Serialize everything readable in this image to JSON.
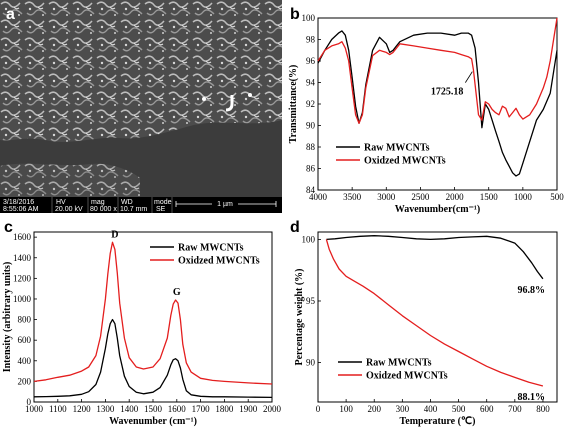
{
  "colors": {
    "raw": "#000000",
    "oxidized": "#e41e1e",
    "sem_bg": "#3a3a3a"
  },
  "sem": {
    "panel_letter": "a",
    "info_headers": [
      "HV",
      "mag",
      "WD",
      "mode"
    ],
    "date": "3/18/2016",
    "time": "8:55:06 AM",
    "hv": "20.00 kV",
    "mag": "80 000 x",
    "wd": "10.7 mm",
    "mode": "SE",
    "scale_bar": "1 µm"
  },
  "chart_data": [
    {
      "panel": "b",
      "type": "line",
      "xlabel": "Wavenumber(cm⁻¹)",
      "ylabel": "Transmittance(%)",
      "xlim": [
        4000,
        500
      ],
      "ylim": [
        84,
        100
      ],
      "xticks": [
        4000,
        3500,
        3000,
        2500,
        2000,
        1500,
        1000,
        500
      ],
      "yticks": [
        84,
        86,
        88,
        90,
        92,
        94,
        96,
        98,
        100
      ],
      "annotation": {
        "text": "1725.18",
        "x": 1725,
        "y": 95.2
      },
      "legend": {
        "placement": "lower-left",
        "entries": [
          "Raw MWCNTs",
          "Oxidzed MWCNTs"
        ]
      },
      "series": [
        {
          "name": "Raw MWCNTs",
          "x": [
            4000,
            3900,
            3800,
            3700,
            3650,
            3600,
            3550,
            3500,
            3450,
            3400,
            3350,
            3300,
            3200,
            3100,
            3000,
            2950,
            2900,
            2850,
            2800,
            2600,
            2400,
            2200,
            2000,
            1900,
            1800,
            1750,
            1700,
            1650,
            1600,
            1550,
            1500,
            1450,
            1400,
            1350,
            1300,
            1250,
            1200,
            1150,
            1100,
            1050,
            1000,
            900,
            800,
            700,
            600,
            550,
            500
          ],
          "y": [
            95.8,
            97.0,
            98.0,
            98.6,
            98.8,
            98.4,
            97.0,
            94.5,
            91.8,
            90.2,
            91.2,
            93.8,
            97.0,
            98.2,
            97.6,
            96.8,
            97.0,
            97.4,
            97.8,
            98.4,
            98.6,
            98.6,
            98.4,
            98.6,
            98.6,
            98.4,
            97.2,
            94.0,
            89.8,
            92.0,
            91.5,
            90.5,
            89.5,
            88.5,
            87.5,
            86.8,
            86.2,
            85.6,
            85.3,
            85.5,
            86.5,
            88.5,
            90.5,
            91.5,
            93.0,
            95.0,
            97.0
          ]
        },
        {
          "name": "Oxidzed MWCNTs",
          "x": [
            4000,
            3900,
            3800,
            3700,
            3650,
            3600,
            3550,
            3500,
            3450,
            3400,
            3350,
            3300,
            3200,
            3100,
            3000,
            2950,
            2900,
            2850,
            2800,
            2600,
            2400,
            2200,
            2000,
            1900,
            1800,
            1750,
            1725,
            1700,
            1650,
            1600,
            1550,
            1500,
            1450,
            1400,
            1350,
            1300,
            1250,
            1200,
            1150,
            1100,
            1050,
            1000,
            900,
            800,
            700,
            650,
            600,
            550,
            500
          ],
          "y": [
            96.0,
            97.0,
            97.4,
            97.6,
            97.8,
            97.2,
            96.0,
            93.5,
            91.0,
            90.2,
            91.0,
            93.5,
            96.5,
            97.0,
            96.8,
            96.6,
            96.8,
            97.2,
            97.6,
            97.4,
            97.2,
            97.0,
            96.8,
            96.6,
            96.4,
            96.2,
            95.2,
            93.8,
            91.0,
            90.5,
            92.2,
            92.0,
            91.5,
            91.2,
            91.0,
            91.8,
            91.6,
            90.8,
            91.2,
            91.6,
            91.0,
            90.6,
            91.0,
            92.0,
            93.5,
            94.5,
            96.0,
            98.0,
            100.0
          ]
        }
      ]
    },
    {
      "panel": "c",
      "type": "line",
      "xlabel": "Wavenumber (cm⁻¹)",
      "ylabel": "Intensity (arbitrary units)",
      "xlim": [
        1000,
        2000
      ],
      "ylim": [
        0,
        1650
      ],
      "xticks": [
        1000,
        1100,
        1200,
        1300,
        1400,
        1500,
        1600,
        1700,
        1800,
        1900,
        2000
      ],
      "yticks": [
        0,
        200,
        400,
        600,
        800,
        1000,
        1200,
        1400,
        1600
      ],
      "peak_labels": [
        {
          "text": "D",
          "x": 1340,
          "y": 1560
        },
        {
          "text": "G",
          "x": 1600,
          "y": 1000
        }
      ],
      "legend": {
        "placement": "top-right",
        "entries": [
          "Raw MWCNTs",
          "Oxidzed MWCNTs"
        ]
      },
      "series": [
        {
          "name": "Raw MWCNTs",
          "x": [
            1000,
            1050,
            1100,
            1150,
            1200,
            1230,
            1260,
            1280,
            1300,
            1310,
            1320,
            1330,
            1340,
            1350,
            1360,
            1380,
            1400,
            1430,
            1460,
            1500,
            1530,
            1560,
            1575,
            1585,
            1595,
            1605,
            1615,
            1625,
            1640,
            1660,
            1700,
            1750,
            1800,
            1900,
            2000
          ],
          "y": [
            50,
            52,
            55,
            60,
            75,
            100,
            170,
            290,
            520,
            660,
            760,
            800,
            760,
            620,
            450,
            250,
            150,
            95,
            80,
            95,
            140,
            260,
            360,
            410,
            420,
            400,
            330,
            220,
            110,
            70,
            55,
            50,
            50,
            48,
            45
          ]
        },
        {
          "name": "Oxidzed MWCNTs",
          "x": [
            1000,
            1050,
            1100,
            1150,
            1200,
            1230,
            1260,
            1280,
            1300,
            1310,
            1320,
            1330,
            1340,
            1350,
            1360,
            1380,
            1400,
            1430,
            1460,
            1500,
            1530,
            1560,
            1575,
            1585,
            1595,
            1605,
            1615,
            1625,
            1640,
            1660,
            1700,
            1750,
            1800,
            1900,
            2000
          ],
          "y": [
            200,
            215,
            240,
            260,
            300,
            340,
            450,
            640,
            1000,
            1240,
            1440,
            1550,
            1480,
            1250,
            960,
            620,
            430,
            340,
            320,
            340,
            420,
            620,
            840,
            950,
            990,
            960,
            800,
            560,
            380,
            290,
            230,
            210,
            200,
            185,
            175
          ]
        }
      ]
    },
    {
      "panel": "d",
      "type": "line",
      "xlabel": "Temperature (℃)",
      "ylabel": "Percentage weight (%)",
      "xlim": [
        0,
        850
      ],
      "ylim": [
        86.8,
        100.6
      ],
      "xticks": [
        0,
        100,
        200,
        300,
        400,
        500,
        600,
        700,
        800
      ],
      "yticks": [
        90,
        95,
        100
      ],
      "end_labels": [
        {
          "text": "96.8%",
          "x": 800,
          "y": 96.8
        },
        {
          "text": "88.1%",
          "x": 800,
          "y": 88.1
        }
      ],
      "legend": {
        "placement": "lower-left",
        "entries": [
          "Raw MWCNTs",
          "Oxidzed MWCNTs"
        ]
      },
      "series": [
        {
          "name": "Raw MWCNTs",
          "x": [
            30,
            60,
            100,
            150,
            200,
            250,
            300,
            350,
            400,
            450,
            500,
            550,
            600,
            650,
            700,
            730,
            760,
            780,
            800
          ],
          "y": [
            100.0,
            100.05,
            100.15,
            100.25,
            100.3,
            100.25,
            100.15,
            100.05,
            100.0,
            100.05,
            100.15,
            100.2,
            100.25,
            100.1,
            99.7,
            99.0,
            98.1,
            97.4,
            96.8
          ]
        },
        {
          "name": "Oxidzed MWCNTs",
          "x": [
            30,
            40,
            55,
            75,
            100,
            130,
            160,
            200,
            250,
            300,
            350,
            400,
            450,
            500,
            550,
            600,
            650,
            700,
            750,
            800
          ],
          "y": [
            100.0,
            99.2,
            98.4,
            97.6,
            97.0,
            96.6,
            96.2,
            95.6,
            94.7,
            93.8,
            93.0,
            92.2,
            91.5,
            90.9,
            90.3,
            89.7,
            89.2,
            88.8,
            88.4,
            88.1
          ]
        }
      ]
    }
  ]
}
